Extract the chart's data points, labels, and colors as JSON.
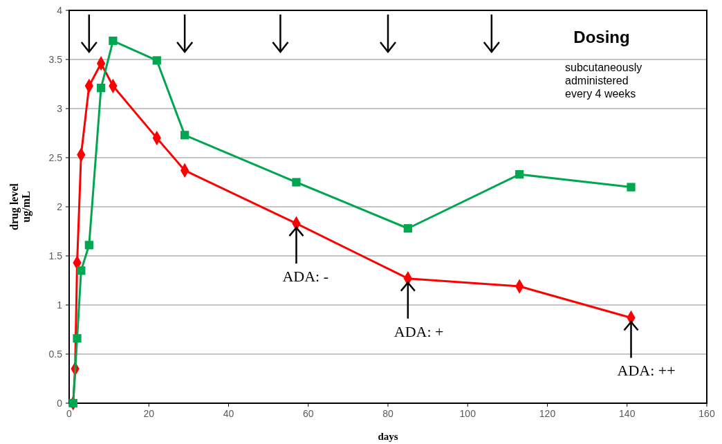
{
  "chart_data": {
    "type": "line",
    "xlabel": "days",
    "ylabel": "drug level\nug/mL",
    "xlim": [
      0,
      160
    ],
    "xticks": [
      0,
      20,
      40,
      60,
      80,
      100,
      120,
      140,
      160
    ],
    "ylim": [
      0,
      4
    ],
    "yticks": [
      0,
      0.5,
      1,
      1.5,
      2,
      2.5,
      3,
      3.5,
      4
    ],
    "grid": "y",
    "series": [
      {
        "color": "#ff0000",
        "marker": "diamond",
        "x": [
          1,
          1.5,
          2,
          3,
          5,
          8,
          11,
          22,
          29,
          57,
          85,
          113,
          141
        ],
        "values": [
          0,
          0.35,
          1.43,
          2.53,
          3.23,
          3.46,
          3.23,
          2.7,
          2.37,
          1.83,
          1.27,
          1.19,
          0.87
        ]
      },
      {
        "color": "#00a650",
        "marker": "square",
        "x": [
          1,
          2,
          3,
          5,
          8,
          11,
          22,
          29,
          57,
          85,
          113,
          141
        ],
        "values": [
          0,
          0.66,
          1.35,
          1.61,
          3.21,
          3.69,
          3.49,
          2.73,
          2.25,
          1.78,
          2.33,
          2.2
        ]
      }
    ],
    "annotations": [
      "Dosing",
      "subcutaneously\nadministered\nevery 4 weeks",
      {
        "text": "ADA: -",
        "x": 57,
        "y": 1.83
      },
      {
        "text": "ADA: +",
        "x": 85,
        "y": 1.27
      },
      {
        "text": "ADA: ++",
        "x": 141,
        "y": 0.87
      }
    ]
  }
}
